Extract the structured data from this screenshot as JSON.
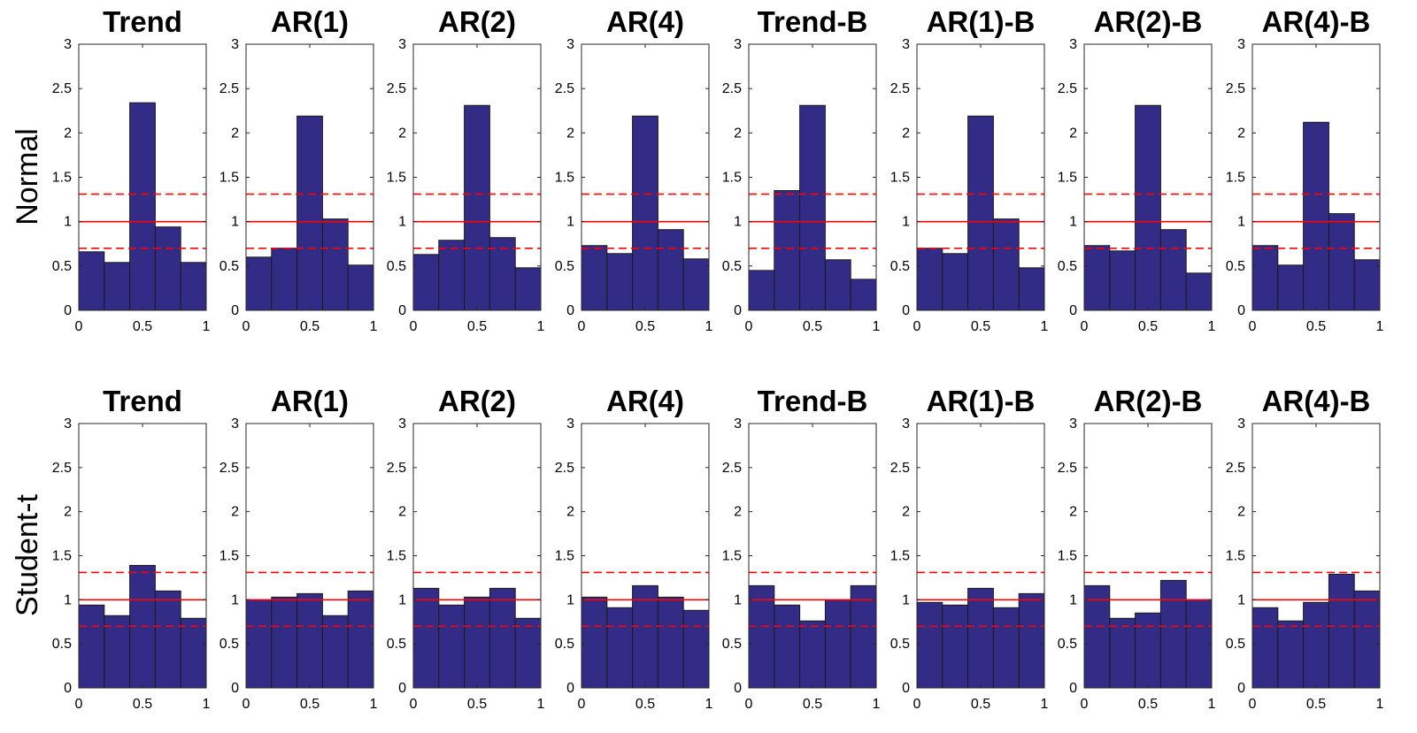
{
  "figure": {
    "row_labels": [
      "Normal",
      "Student-t"
    ],
    "colors": {
      "bar_fill": "#332C87",
      "bar_edge": "#1A1A1A",
      "reference_line": "#FF0000",
      "axes": "#262626"
    }
  },
  "chart_data": [
    {
      "type": "bar",
      "row": "Normal",
      "title": "Trend",
      "bin_edges": [
        0,
        0.2,
        0.4,
        0.6,
        0.8,
        1.0
      ],
      "values": [
        0.66,
        0.54,
        2.34,
        0.94,
        0.54
      ],
      "reference_lines": {
        "solid": 1.0,
        "dashed": [
          0.7,
          1.31
        ]
      },
      "xlim": [
        0,
        1
      ],
      "ylim": [
        0,
        3
      ],
      "xticks": [
        "0",
        "0.5",
        "1"
      ],
      "yticks": [
        "0",
        "0.5",
        "1",
        "1.5",
        "2",
        "2.5",
        "3"
      ]
    },
    {
      "type": "bar",
      "row": "Normal",
      "title": "AR(1)",
      "bin_edges": [
        0,
        0.2,
        0.4,
        0.6,
        0.8,
        1.0
      ],
      "values": [
        0.6,
        0.7,
        2.19,
        1.03,
        0.51
      ],
      "reference_lines": {
        "solid": 1.0,
        "dashed": [
          0.7,
          1.31
        ]
      },
      "xlim": [
        0,
        1
      ],
      "ylim": [
        0,
        3
      ],
      "xticks": [
        "0",
        "0.5",
        "1"
      ],
      "yticks": [
        "0",
        "0.5",
        "1",
        "1.5",
        "2",
        "2.5",
        "3"
      ]
    },
    {
      "type": "bar",
      "row": "Normal",
      "title": "AR(2)",
      "bin_edges": [
        0,
        0.2,
        0.4,
        0.6,
        0.8,
        1.0
      ],
      "values": [
        0.63,
        0.79,
        2.31,
        0.82,
        0.48
      ],
      "reference_lines": {
        "solid": 1.0,
        "dashed": [
          0.7,
          1.31
        ]
      },
      "xlim": [
        0,
        1
      ],
      "ylim": [
        0,
        3
      ],
      "xticks": [
        "0",
        "0.5",
        "1"
      ],
      "yticks": [
        "0",
        "0.5",
        "1",
        "1.5",
        "2",
        "2.5",
        "3"
      ]
    },
    {
      "type": "bar",
      "row": "Normal",
      "title": "AR(4)",
      "bin_edges": [
        0,
        0.2,
        0.4,
        0.6,
        0.8,
        1.0
      ],
      "values": [
        0.73,
        0.64,
        2.19,
        0.91,
        0.58
      ],
      "reference_lines": {
        "solid": 1.0,
        "dashed": [
          0.7,
          1.31
        ]
      },
      "xlim": [
        0,
        1
      ],
      "ylim": [
        0,
        3
      ],
      "xticks": [
        "0",
        "0.5",
        "1"
      ],
      "yticks": [
        "0",
        "0.5",
        "1",
        "1.5",
        "2",
        "2.5",
        "3"
      ]
    },
    {
      "type": "bar",
      "row": "Normal",
      "title": "Trend-B",
      "bin_edges": [
        0,
        0.2,
        0.4,
        0.6,
        0.8,
        1.0
      ],
      "values": [
        0.45,
        1.35,
        2.31,
        0.57,
        0.35
      ],
      "reference_lines": {
        "solid": 1.0,
        "dashed": [
          0.7,
          1.31
        ]
      },
      "xlim": [
        0,
        1
      ],
      "ylim": [
        0,
        3
      ],
      "xticks": [
        "0",
        "0.5",
        "1"
      ],
      "yticks": [
        "0",
        "0.5",
        "1",
        "1.5",
        "2",
        "2.5",
        "3"
      ]
    },
    {
      "type": "bar",
      "row": "Normal",
      "title": "AR(1)-B",
      "bin_edges": [
        0,
        0.2,
        0.4,
        0.6,
        0.8,
        1.0
      ],
      "values": [
        0.7,
        0.64,
        2.19,
        1.03,
        0.48
      ],
      "reference_lines": {
        "solid": 1.0,
        "dashed": [
          0.7,
          1.31
        ]
      },
      "xlim": [
        0,
        1
      ],
      "ylim": [
        0,
        3
      ],
      "xticks": [
        "0",
        "0.5",
        "1"
      ],
      "yticks": [
        "0",
        "0.5",
        "1",
        "1.5",
        "2",
        "2.5",
        "3"
      ]
    },
    {
      "type": "bar",
      "row": "Normal",
      "title": "AR(2)-B",
      "bin_edges": [
        0,
        0.2,
        0.4,
        0.6,
        0.8,
        1.0
      ],
      "values": [
        0.73,
        0.67,
        2.31,
        0.91,
        0.42
      ],
      "reference_lines": {
        "solid": 1.0,
        "dashed": [
          0.7,
          1.31
        ]
      },
      "xlim": [
        0,
        1
      ],
      "ylim": [
        0,
        3
      ],
      "xticks": [
        "0",
        "0.5",
        "1"
      ],
      "yticks": [
        "0",
        "0.5",
        "1",
        "1.5",
        "2",
        "2.5",
        "3"
      ]
    },
    {
      "type": "bar",
      "row": "Normal",
      "title": "AR(4)-B",
      "bin_edges": [
        0,
        0.2,
        0.4,
        0.6,
        0.8,
        1.0
      ],
      "values": [
        0.73,
        0.51,
        2.12,
        1.09,
        0.57
      ],
      "reference_lines": {
        "solid": 1.0,
        "dashed": [
          0.7,
          1.31
        ]
      },
      "xlim": [
        0,
        1
      ],
      "ylim": [
        0,
        3
      ],
      "xticks": [
        "0",
        "0.5",
        "1"
      ],
      "yticks": [
        "0",
        "0.5",
        "1",
        "1.5",
        "2",
        "2.5",
        "3"
      ]
    },
    {
      "type": "bar",
      "row": "Student-t",
      "title": "Trend",
      "bin_edges": [
        0,
        0.2,
        0.4,
        0.6,
        0.8,
        1.0
      ],
      "values": [
        0.94,
        0.82,
        1.39,
        1.1,
        0.79
      ],
      "reference_lines": {
        "solid": 1.0,
        "dashed": [
          0.7,
          1.31
        ]
      },
      "xlim": [
        0,
        1
      ],
      "ylim": [
        0,
        3
      ],
      "xticks": [
        "0",
        "0.5",
        "1"
      ],
      "yticks": [
        "0",
        "0.5",
        "1",
        "1.5",
        "2",
        "2.5",
        "3"
      ]
    },
    {
      "type": "bar",
      "row": "Student-t",
      "title": "AR(1)",
      "bin_edges": [
        0,
        0.2,
        0.4,
        0.6,
        0.8,
        1.0
      ],
      "values": [
        1.0,
        1.03,
        1.07,
        0.82,
        1.1
      ],
      "reference_lines": {
        "solid": 1.0,
        "dashed": [
          0.7,
          1.31
        ]
      },
      "xlim": [
        0,
        1
      ],
      "ylim": [
        0,
        3
      ],
      "xticks": [
        "0",
        "0.5",
        "1"
      ],
      "yticks": [
        "0",
        "0.5",
        "1",
        "1.5",
        "2",
        "2.5",
        "3"
      ]
    },
    {
      "type": "bar",
      "row": "Student-t",
      "title": "AR(2)",
      "bin_edges": [
        0,
        0.2,
        0.4,
        0.6,
        0.8,
        1.0
      ],
      "values": [
        1.13,
        0.94,
        1.03,
        1.13,
        0.79
      ],
      "reference_lines": {
        "solid": 1.0,
        "dashed": [
          0.7,
          1.31
        ]
      },
      "xlim": [
        0,
        1
      ],
      "ylim": [
        0,
        3
      ],
      "xticks": [
        "0",
        "0.5",
        "1"
      ],
      "yticks": [
        "0",
        "0.5",
        "1",
        "1.5",
        "2",
        "2.5",
        "3"
      ]
    },
    {
      "type": "bar",
      "row": "Student-t",
      "title": "AR(4)",
      "bin_edges": [
        0,
        0.2,
        0.4,
        0.6,
        0.8,
        1.0
      ],
      "values": [
        1.03,
        0.91,
        1.16,
        1.03,
        0.88
      ],
      "reference_lines": {
        "solid": 1.0,
        "dashed": [
          0.7,
          1.31
        ]
      },
      "xlim": [
        0,
        1
      ],
      "ylim": [
        0,
        3
      ],
      "xticks": [
        "0",
        "0.5",
        "1"
      ],
      "yticks": [
        "0",
        "0.5",
        "1",
        "1.5",
        "2",
        "2.5",
        "3"
      ]
    },
    {
      "type": "bar",
      "row": "Student-t",
      "title": "Trend-B",
      "bin_edges": [
        0,
        0.2,
        0.4,
        0.6,
        0.8,
        1.0
      ],
      "values": [
        1.16,
        0.94,
        0.76,
        1.0,
        1.16
      ],
      "reference_lines": {
        "solid": 1.0,
        "dashed": [
          0.7,
          1.31
        ]
      },
      "xlim": [
        0,
        1
      ],
      "ylim": [
        0,
        3
      ],
      "xticks": [
        "0",
        "0.5",
        "1"
      ],
      "yticks": [
        "0",
        "0.5",
        "1",
        "1.5",
        "2",
        "2.5",
        "3"
      ]
    },
    {
      "type": "bar",
      "row": "Student-t",
      "title": "AR(1)-B",
      "bin_edges": [
        0,
        0.2,
        0.4,
        0.6,
        0.8,
        1.0
      ],
      "values": [
        0.97,
        0.94,
        1.13,
        0.91,
        1.07
      ],
      "reference_lines": {
        "solid": 1.0,
        "dashed": [
          0.7,
          1.31
        ]
      },
      "xlim": [
        0,
        1
      ],
      "ylim": [
        0,
        3
      ],
      "xticks": [
        "0",
        "0.5",
        "1"
      ],
      "yticks": [
        "0",
        "0.5",
        "1",
        "1.5",
        "2",
        "2.5",
        "3"
      ]
    },
    {
      "type": "bar",
      "row": "Student-t",
      "title": "AR(2)-B",
      "bin_edges": [
        0,
        0.2,
        0.4,
        0.6,
        0.8,
        1.0
      ],
      "values": [
        1.16,
        0.79,
        0.85,
        1.22,
        1.0
      ],
      "reference_lines": {
        "solid": 1.0,
        "dashed": [
          0.7,
          1.31
        ]
      },
      "xlim": [
        0,
        1
      ],
      "ylim": [
        0,
        3
      ],
      "xticks": [
        "0",
        "0.5",
        "1"
      ],
      "yticks": [
        "0",
        "0.5",
        "1",
        "1.5",
        "2",
        "2.5",
        "3"
      ]
    },
    {
      "type": "bar",
      "row": "Student-t",
      "title": "AR(4)-B",
      "bin_edges": [
        0,
        0.2,
        0.4,
        0.6,
        0.8,
        1.0
      ],
      "values": [
        0.91,
        0.76,
        0.97,
        1.29,
        1.1
      ],
      "reference_lines": {
        "solid": 1.0,
        "dashed": [
          0.7,
          1.31
        ]
      },
      "xlim": [
        0,
        1
      ],
      "ylim": [
        0,
        3
      ],
      "xticks": [
        "0",
        "0.5",
        "1"
      ],
      "yticks": [
        "0",
        "0.5",
        "1",
        "1.5",
        "2",
        "2.5",
        "3"
      ]
    }
  ]
}
